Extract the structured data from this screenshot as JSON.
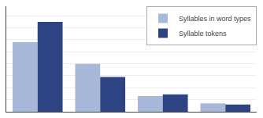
{
  "chart_data": {
    "type": "bar",
    "categories": [
      null,
      null,
      null,
      null
    ],
    "series": [
      {
        "name": "Syllables in word types",
        "color": "#a8b8d8",
        "values": [
          0.58,
          0.4,
          0.13,
          0.07
        ]
      },
      {
        "name": "Syllable tokens",
        "color": "#2e4482",
        "values": [
          0.75,
          0.29,
          0.145,
          0.06
        ]
      }
    ],
    "ylim": [
      0,
      0.88
    ],
    "yticks": [
      0,
      0.1,
      0.2,
      0.3,
      0.4,
      0.5,
      0.6,
      0.7,
      0.8
    ],
    "grid": true,
    "legend": "upper right",
    "tick_labels": false
  }
}
